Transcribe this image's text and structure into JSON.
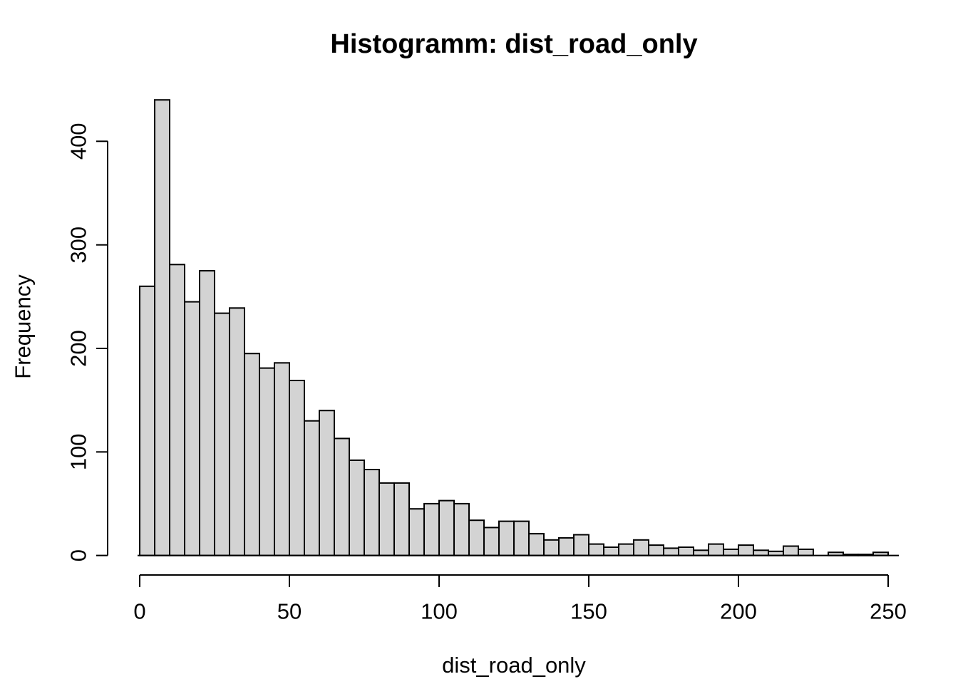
{
  "chart_data": {
    "type": "bar",
    "subtype": "histogram",
    "title": "Histogramm: dist_road_only",
    "xlabel": "dist_road_only",
    "ylabel": "Frequency",
    "bin_start": 0,
    "bin_width": 5,
    "bin_edges": [
      0,
      5,
      10,
      15,
      20,
      25,
      30,
      35,
      40,
      45,
      50,
      55,
      60,
      65,
      70,
      75,
      80,
      85,
      90,
      95,
      100,
      105,
      110,
      115,
      120,
      125,
      130,
      135,
      140,
      145,
      150,
      155,
      160,
      165,
      170,
      175,
      180,
      185,
      190,
      195,
      200,
      205,
      210,
      215,
      220,
      225,
      230,
      235,
      240,
      245,
      250
    ],
    "counts": [
      260,
      440,
      281,
      245,
      275,
      234,
      239,
      195,
      181,
      186,
      169,
      130,
      140,
      113,
      92,
      83,
      70,
      70,
      45,
      50,
      53,
      50,
      34,
      27,
      33,
      33,
      21,
      15,
      17,
      20,
      11,
      8,
      11,
      15,
      10,
      7,
      8,
      5,
      11,
      6,
      10,
      5,
      4,
      9,
      6,
      0,
      3,
      1,
      1,
      3
    ],
    "xticks": [
      0,
      50,
      100,
      150,
      200,
      250
    ],
    "yticks": [
      0,
      100,
      200,
      300,
      400
    ],
    "xlim": [
      0,
      250
    ],
    "ylim": [
      0,
      440
    ],
    "grid": "off",
    "legend": "none",
    "bar_fill": "#d3d3d3",
    "bar_stroke": "#000000",
    "axis_color": "#000000",
    "background": "#ffffff"
  }
}
